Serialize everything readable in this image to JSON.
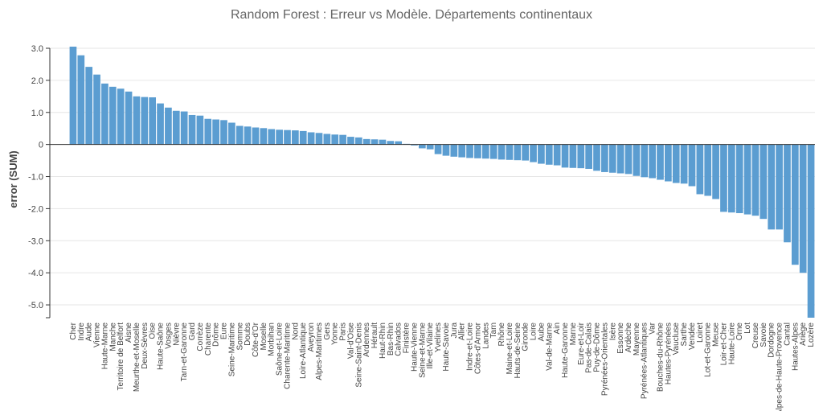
{
  "chart_data": {
    "type": "bar",
    "title": "Random Forest : Erreur vs Modèle. Départements continentaux",
    "xlabel": "",
    "ylabel": "error (SUM)",
    "ylim": [
      -5.4,
      3.0
    ],
    "yticks": [
      3.0,
      2.0,
      1.0,
      0,
      -1.0,
      -2.0,
      -3.0,
      -4.0,
      -5.0
    ],
    "ytick_labels": [
      "3.0",
      "2.0",
      "1.0",
      "0",
      "-1.0",
      "-2.0",
      "-3.0",
      "-4.0",
      "-5.0"
    ],
    "grid": true,
    "bar_color": "#5b9dd1",
    "categories": [
      "Cher",
      "Indre",
      "Aude",
      "Vienne",
      "Haute-Marne",
      "Manche",
      "Territoire de Belfort",
      "Aisne",
      "Meurthe-et-Moselle",
      "Deux-Sèvres",
      "Oise",
      "Haute-Saône",
      "Vosges",
      "Nièvre",
      "Tarn-et-Garonne",
      "Gard",
      "Corrèze",
      "Charente",
      "Drôme",
      "Eure",
      "Seine-Maritime",
      "Somme",
      "Doubs",
      "Côte-d'Or",
      "Moselle",
      "Morbihan",
      "Saône-et-Loire",
      "Charente-Maritime",
      "Nord",
      "Loire-Atlantique",
      "Aveyron",
      "Alpes-Maritimes",
      "Gers",
      "Yonne",
      "Paris",
      "Val-d'Oise",
      "Seine-Saint-Denis",
      "Ardennes",
      "Hérault",
      "Haut-Rhin",
      "Bas-Rhin",
      "Calvados",
      "Finistère",
      "Haute-Vienne",
      "Seine-et-Marne",
      "Ille-et-Vilaine",
      "Yvelines",
      "Haute-Savoie",
      "Jura",
      "Allier",
      "Indre-et-Loire",
      "Côtes-d'Armor",
      "Landes",
      "Tarn",
      "Rhône",
      "Maine-et-Loire",
      "Hauts-de-Seine",
      "Gironde",
      "Loire",
      "Aube",
      "Val-de-Marne",
      "Ain",
      "Haute-Garonne",
      "Marne",
      "Eure-et-Loir",
      "Pas-de-Calais",
      "Puy-de-Dôme",
      "Pyrénées-Orientales",
      "Isère",
      "Essonne",
      "Ardèche",
      "Mayenne",
      "Pyrénées-Atlantiques",
      "Var",
      "Bouches-du-Rhône",
      "Hautes-Pyrénées",
      "Vaucluse",
      "Sarthe",
      "Vendée",
      "Loiret",
      "Lot-et-Garonne",
      "Meuse",
      "Loir-et-Cher",
      "Haute-Loire",
      "Orne",
      "Lot",
      "Creuse",
      "Savoie",
      "Dordogne",
      "Alpes-de-Haute-Provence",
      "Cantal",
      "Hautes-Alpes",
      "Ariège",
      "Lozère"
    ],
    "values": [
      3.05,
      2.78,
      2.42,
      2.18,
      1.9,
      1.8,
      1.74,
      1.65,
      1.5,
      1.48,
      1.47,
      1.28,
      1.15,
      1.05,
      1.03,
      0.92,
      0.9,
      0.8,
      0.78,
      0.76,
      0.68,
      0.58,
      0.56,
      0.53,
      0.51,
      0.48,
      0.46,
      0.45,
      0.44,
      0.42,
      0.38,
      0.36,
      0.33,
      0.31,
      0.3,
      0.24,
      0.22,
      0.17,
      0.16,
      0.15,
      0.11,
      0.1,
      0.02,
      -0.03,
      -0.12,
      -0.15,
      -0.3,
      -0.35,
      -0.38,
      -0.4,
      -0.42,
      -0.43,
      -0.44,
      -0.45,
      -0.47,
      -0.48,
      -0.49,
      -0.5,
      -0.55,
      -0.6,
      -0.63,
      -0.65,
      -0.72,
      -0.73,
      -0.74,
      -0.76,
      -0.82,
      -0.86,
      -0.88,
      -0.9,
      -0.92,
      -0.98,
      -1.02,
      -1.05,
      -1.1,
      -1.15,
      -1.2,
      -1.22,
      -1.3,
      -1.55,
      -1.6,
      -1.7,
      -2.1,
      -2.12,
      -2.14,
      -2.18,
      -2.22,
      -2.32,
      -2.65,
      -2.65,
      -3.05,
      -3.75,
      -4.0,
      -5.4
    ]
  }
}
